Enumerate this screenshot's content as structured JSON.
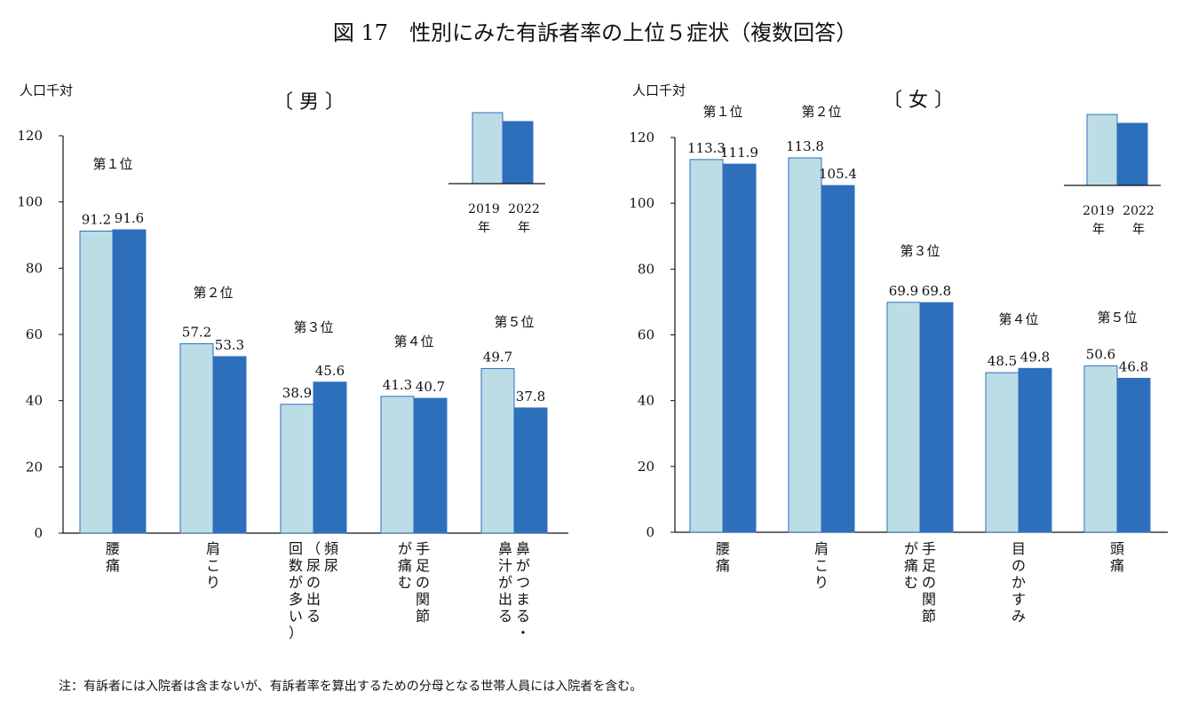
{
  "title": "図 17　性別にみた有訴者率の上位５症状（複数回答）",
  "note": "注：有訴者には入院者は含まないが、有訴者率を算出するための分母となる世帯人員には入院者を含む。",
  "colors": {
    "series2019": "#bcdde6",
    "series2022": "#2e6fbc",
    "border": "#2e6fbc",
    "axis": "#111111"
  },
  "chart_data": [
    {
      "type": "bar",
      "title": "〔 男 〕",
      "ylabel": "人口千対",
      "ylim": [
        0,
        120
      ],
      "yticks": [
        0,
        20,
        40,
        60,
        80,
        100,
        120
      ],
      "legend": {
        "labels": [
          "2019\n年",
          "2022\n年"
        ],
        "placement": "top-right"
      },
      "categories": [
        "腰\n痛",
        "肩\nこ\nり",
        "頻\n尿\n（\n尿\nの\n出\nる\n回\n数\nが\n多\nい\n）",
        "手\n足\nの\n関\n節\nが\n痛\nむ",
        "鼻\nが\nつ\nま\nる\n・\n鼻\n汁\nが\n出\nる"
      ],
      "category_columns": [
        [
          [
            "腰",
            "痛"
          ]
        ],
        [
          [
            "肩",
            "こ",
            "り"
          ]
        ],
        [
          [
            "頻",
            "尿"
          ],
          [
            "（",
            "尿",
            "の",
            "出",
            "る"
          ],
          [
            "回",
            "数",
            "が",
            "多",
            "い",
            "）"
          ]
        ],
        [
          [
            "手",
            "足",
            "の",
            "関",
            "節"
          ],
          [
            "が",
            "痛",
            "む"
          ]
        ],
        [
          [
            "鼻",
            "が",
            "つ",
            "ま",
            "る",
            "・"
          ],
          [
            "鼻",
            "汁",
            "が",
            "出",
            "る"
          ]
        ]
      ],
      "ranks": [
        "第１位",
        "第２位",
        "第３位",
        "第４位",
        "第５位"
      ],
      "series": [
        {
          "name": "2019年",
          "values": [
            91.2,
            57.2,
            38.9,
            41.3,
            49.7
          ],
          "labels": [
            "91.2",
            "57.2",
            "38.9",
            "41.3",
            "49.7"
          ]
        },
        {
          "name": "2022年",
          "values": [
            91.6,
            53.3,
            45.6,
            40.7,
            37.8
          ],
          "labels": [
            "91.6",
            "53.3",
            "45.6",
            "40.7",
            "37.8"
          ]
        }
      ]
    },
    {
      "type": "bar",
      "title": "〔 女 〕",
      "ylabel": "人口千対",
      "ylim": [
        0,
        120
      ],
      "yticks": [
        0,
        20,
        40,
        60,
        80,
        100,
        120
      ],
      "legend": {
        "labels": [
          "2019\n年",
          "2022\n年"
        ],
        "placement": "top-right"
      },
      "categories": [
        "腰\n痛",
        "肩\nこ\nり",
        "手\n足\nの\n関\n節\nが\n痛\nむ",
        "目\nの\nか\nす\nみ",
        "頭\n痛"
      ],
      "category_columns": [
        [
          [
            "腰",
            "痛"
          ]
        ],
        [
          [
            "肩",
            "こ",
            "り"
          ]
        ],
        [
          [
            "手",
            "足",
            "の",
            "関",
            "節"
          ],
          [
            "が",
            "痛",
            "む"
          ]
        ],
        [
          [
            "目",
            "の",
            "か",
            "す",
            "み"
          ]
        ],
        [
          [
            "頭",
            "痛"
          ]
        ]
      ],
      "ranks": [
        "第１位",
        "第２位",
        "第３位",
        "第４位",
        "第５位"
      ],
      "series": [
        {
          "name": "2019年",
          "values": [
            113.3,
            113.8,
            69.9,
            48.5,
            50.6
          ],
          "labels": [
            "113.3",
            "113.8",
            "69.9",
            "48.5",
            "50.6"
          ]
        },
        {
          "name": "2022年",
          "values": [
            111.9,
            105.4,
            69.8,
            49.8,
            46.8
          ],
          "labels": [
            "111.9",
            "105.4",
            "69.8",
            "49.8",
            "46.8"
          ]
        }
      ]
    }
  ]
}
